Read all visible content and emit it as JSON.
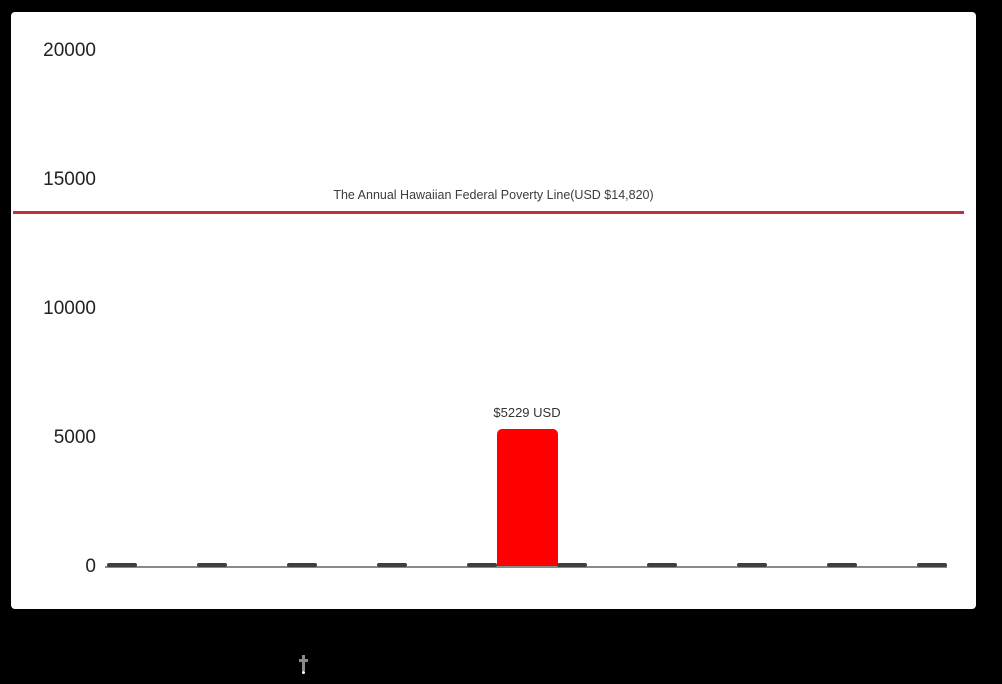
{
  "page": {
    "background_color": "#000000",
    "panel_color": "#ffffff"
  },
  "chart_data": {
    "type": "bar",
    "title": "",
    "xlabel": "",
    "ylabel": "",
    "x_tick_labels_visible": false,
    "grid": false,
    "values": [
      0,
      0,
      0,
      0,
      0,
      5229,
      0,
      0,
      0,
      0,
      0
    ],
    "highlight_index": 5,
    "highlight_bar_label": "$5229 USD",
    "highlight_bar_color": "#ff0000",
    "zero_bar_color": "#3f3f3f",
    "ytick_values": [
      0,
      5000,
      10000,
      15000,
      20000
    ],
    "ylim": [
      0,
      21000
    ],
    "axis_color": "#8a8a8a",
    "text_color": "#222222",
    "annotation_line": {
      "label": "The Annual Hawaiian Federal Poverty Line(USD $14,820)",
      "value": 14820,
      "color": "#c62d3c",
      "label_color": "#3c3c3c"
    }
  },
  "cursor": {
    "type": "i-beam-cursor"
  }
}
